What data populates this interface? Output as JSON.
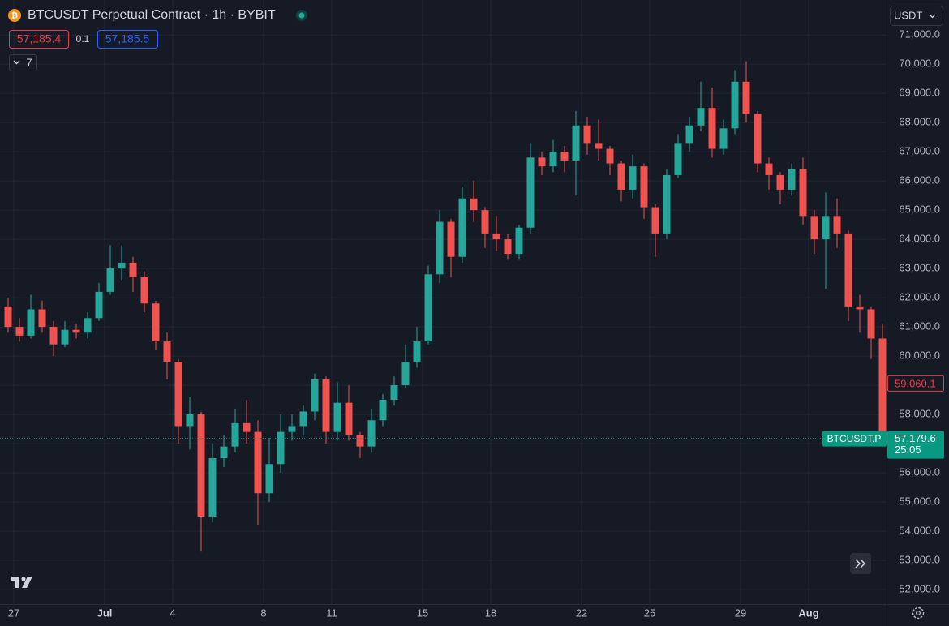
{
  "chart_data": {
    "type": "candlestick",
    "title": "BTCUSDT Perpetual Contract · 1h · BYBIT",
    "toolbar": {
      "sell": "57,185.4",
      "spread": "0.1",
      "buy": "57,185.5",
      "indicators": "7",
      "currency": "USDT"
    },
    "up_color": "#26a69a",
    "down_color": "#ef5350",
    "grid": true,
    "categories": [
      null,
      "27",
      null,
      null,
      null,
      null,
      null,
      null,
      null,
      "Jul",
      null,
      null,
      null,
      null,
      null,
      "4",
      null,
      null,
      null,
      null,
      null,
      null,
      null,
      "8",
      null,
      null,
      null,
      null,
      null,
      "11",
      null,
      null,
      null,
      null,
      null,
      null,
      null,
      "15",
      null,
      null,
      null,
      null,
      null,
      "18",
      null,
      null,
      null,
      null,
      null,
      null,
      null,
      "22",
      null,
      null,
      null,
      null,
      null,
      "25",
      null,
      null,
      null,
      null,
      null,
      null,
      null,
      "29",
      null,
      null,
      null,
      null,
      null,
      "Aug",
      null,
      null,
      null,
      null,
      null,
      null
    ],
    "open": [
      61700,
      61000,
      60700,
      61600,
      61000,
      60400,
      60900,
      60800,
      61300,
      62200,
      63000,
      63200,
      62700,
      61800,
      60500,
      59800,
      57600,
      58000,
      54500,
      56500,
      56900,
      57700,
      57400,
      55300,
      56300,
      57400,
      57600,
      58100,
      59200,
      57400,
      58400,
      57300,
      56900,
      57800,
      58500,
      59000,
      59800,
      60500,
      62800,
      64600,
      63400,
      65400,
      65000,
      64200,
      64000,
      63500,
      64400,
      66800,
      66500,
      67000,
      66700,
      67900,
      67300,
      67100,
      66600,
      65700,
      66500,
      65100,
      64200,
      66200,
      67300,
      67900,
      68500,
      67100,
      67800,
      69400,
      68300,
      66600,
      66200,
      65700,
      66400,
      64800,
      64000,
      64800,
      64200,
      61700,
      61600,
      60600
    ],
    "high": [
      62000,
      61300,
      62100,
      61900,
      61200,
      61200,
      61100,
      61500,
      62500,
      63800,
      63800,
      63400,
      62900,
      61900,
      60800,
      59900,
      58600,
      58100,
      57000,
      57300,
      58200,
      58500,
      57800,
      57200,
      58000,
      58000,
      58300,
      59400,
      59300,
      59100,
      59000,
      57400,
      58200,
      58700,
      59300,
      60400,
      61000,
      63100,
      65000,
      64700,
      65800,
      66000,
      65100,
      64800,
      64200,
      64500,
      67300,
      67000,
      67400,
      67200,
      68400,
      68200,
      68100,
      67200,
      66700,
      66900,
      66600,
      65200,
      66400,
      67600,
      68200,
      69400,
      69200,
      68100,
      69800,
      70100,
      68400,
      66800,
      66300,
      66600,
      66800,
      65000,
      65600,
      65400,
      64300,
      62100,
      61700,
      61100
    ],
    "low": [
      60800,
      60500,
      60600,
      60800,
      60000,
      60300,
      60600,
      60600,
      61200,
      62100,
      62600,
      62200,
      61500,
      60200,
      59200,
      57000,
      56800,
      53300,
      54300,
      56200,
      56700,
      57000,
      54200,
      55000,
      56000,
      57100,
      57300,
      57800,
      57000,
      57100,
      57100,
      56500,
      56700,
      57600,
      58300,
      58900,
      59600,
      60400,
      62500,
      62700,
      63200,
      64600,
      63700,
      63600,
      63300,
      63300,
      64200,
      66200,
      66300,
      66300,
      65500,
      66900,
      66700,
      66200,
      65300,
      65400,
      64700,
      63400,
      64000,
      66100,
      67000,
      67700,
      66800,
      66900,
      67600,
      68000,
      66300,
      65700,
      65200,
      65500,
      64500,
      63500,
      62300,
      63700,
      61200,
      60800,
      59900,
      57000
    ],
    "close": [
      61000,
      60700,
      61600,
      61000,
      60400,
      60900,
      60800,
      61300,
      62200,
      63000,
      63200,
      62700,
      61800,
      60500,
      59800,
      57600,
      58000,
      54500,
      56500,
      56900,
      57700,
      57400,
      55300,
      56300,
      57400,
      57600,
      58100,
      59200,
      57400,
      58400,
      57300,
      56900,
      57800,
      58500,
      59000,
      59800,
      60500,
      62800,
      64600,
      63400,
      65400,
      65000,
      64200,
      64000,
      63500,
      64400,
      66800,
      66500,
      67000,
      66700,
      67900,
      67300,
      67100,
      66600,
      65700,
      66500,
      65100,
      64200,
      66200,
      67300,
      67900,
      68500,
      67100,
      67800,
      69400,
      68300,
      66600,
      66200,
      65700,
      66400,
      64800,
      64000,
      64800,
      64200,
      61700,
      61600,
      60600,
      57179.6
    ],
    "ylim": [
      51500,
      72200
    ],
    "yticks": [
      {
        "value": 52000,
        "label": "52,000.0"
      },
      {
        "value": 53000,
        "label": "53,000.0"
      },
      {
        "value": 54000,
        "label": "54,000.0"
      },
      {
        "value": 55000,
        "label": "55,000.0"
      },
      {
        "value": 56000,
        "label": "56,000.0"
      },
      {
        "value": 57000,
        "label": "57,000.0"
      },
      {
        "value": 58000,
        "label": "58,000.0"
      },
      {
        "value": 59000,
        "label": "59,000.0"
      },
      {
        "value": 60000,
        "label": "60,000.0"
      },
      {
        "value": 61000,
        "label": "61,000.0"
      },
      {
        "value": 62000,
        "label": "62,000.0"
      },
      {
        "value": 63000,
        "label": "63,000.0"
      },
      {
        "value": 64000,
        "label": "64,000.0"
      },
      {
        "value": 65000,
        "label": "65,000.0"
      },
      {
        "value": 66000,
        "label": "66,000.0"
      },
      {
        "value": 67000,
        "label": "67,000.0"
      },
      {
        "value": 68000,
        "label": "68,000.0"
      },
      {
        "value": 69000,
        "label": "69,000.0"
      },
      {
        "value": 70000,
        "label": "70,000.0"
      },
      {
        "value": 71000,
        "label": "71,000.0"
      }
    ],
    "price_labels": [
      {
        "value": 59060.1,
        "label": "59,060.1",
        "color": "#f23645"
      },
      {
        "value": 57179.6,
        "label": "57,179.6",
        "symbol": "BTCUSDT.P",
        "countdown": "25:05",
        "color": "#089981"
      }
    ]
  }
}
